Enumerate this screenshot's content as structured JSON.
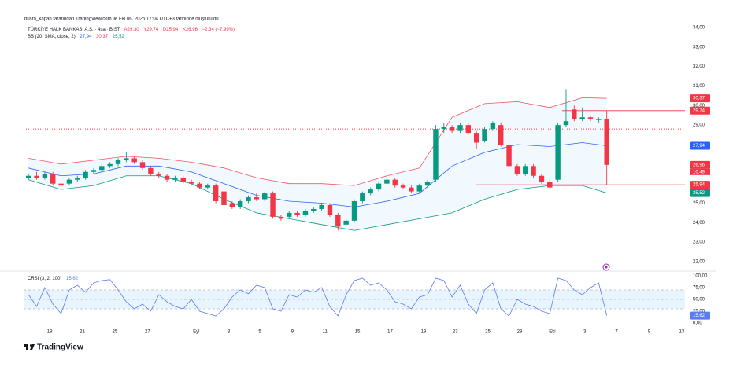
{
  "header": {
    "credit": "busra_kapan tarafından TradingView.com ile Eki 06, 2025 17:04 UTC+3 tarihinde oluşturuldu"
  },
  "brand": "TradingView",
  "chart_data": [
    {
      "type": "candlestick",
      "symbol": "TÜRKİYE HALK BANKASI A.Ş. · 4sa · BIST",
      "ohlc_labels": [
        "A29,30",
        "Y29,74",
        "D25,94",
        "K26,96",
        "−2,34 (−7,99%)"
      ],
      "bb_name": "BB (20, SMA, close, 2)",
      "bb_labels": [
        "27,94",
        "30,37",
        "25,52"
      ],
      "up_color": "#089981",
      "down_color": "#f23645",
      "grid": false,
      "x": [
        0,
        1,
        2,
        3,
        4,
        5,
        6,
        7,
        8,
        9,
        10,
        11,
        12,
        13,
        14,
        15,
        16,
        17,
        18,
        19,
        20,
        21,
        22,
        23,
        24,
        25,
        26,
        27,
        28,
        29,
        30,
        31,
        32,
        33,
        34,
        35,
        36,
        37,
        38,
        39,
        40,
        41,
        42,
        43,
        44,
        45,
        46,
        47,
        48,
        49,
        50,
        51,
        52,
        53,
        54,
        55,
        56,
        57,
        58,
        59,
        60,
        61,
        62,
        63,
        64,
        65,
        66,
        67,
        68,
        69,
        70,
        71
      ],
      "open": [
        26.3,
        26.4,
        26.3,
        26.5,
        26.0,
        26.0,
        26.2,
        26.3,
        26.6,
        26.7,
        26.9,
        27.0,
        27.2,
        27.3,
        27.1,
        26.8,
        26.5,
        26.4,
        26.2,
        26.3,
        26.1,
        26.0,
        25.8,
        25.9,
        25.6,
        25.0,
        24.8,
        25.1,
        25.3,
        25.2,
        25.5,
        24.3,
        24.3,
        24.5,
        24.4,
        24.6,
        24.7,
        24.9,
        24.4,
        23.9,
        24.1,
        25.1,
        25.5,
        25.7,
        26.0,
        26.2,
        25.9,
        25.8,
        25.6,
        25.9,
        26.2,
        28.8,
        28.9,
        28.7,
        29.0,
        28.6,
        28.2,
        28.8,
        29.0,
        28.0,
        26.9,
        26.5,
        26.9,
        26.4,
        26.1,
        26.2,
        29.0,
        29.8,
        29.3,
        29.4,
        29.3,
        29.3
      ],
      "high": [
        26.5,
        26.6,
        26.6,
        26.6,
        26.1,
        26.3,
        26.4,
        26.7,
        26.8,
        27.0,
        27.1,
        27.3,
        27.6,
        27.4,
        27.2,
        26.9,
        26.6,
        26.5,
        26.4,
        26.4,
        26.2,
        26.1,
        26.0,
        26.0,
        25.7,
        25.1,
        25.2,
        25.4,
        25.5,
        25.6,
        25.6,
        24.4,
        24.6,
        24.6,
        24.7,
        24.8,
        25.0,
        25.0,
        24.5,
        24.2,
        25.2,
        25.6,
        25.8,
        26.1,
        26.4,
        26.3,
        26.0,
        25.9,
        26.0,
        26.2,
        29.0,
        29.1,
        29.0,
        29.1,
        29.1,
        28.7,
        28.9,
        29.2,
        29.1,
        28.1,
        27.0,
        27.0,
        27.0,
        26.5,
        26.2,
        29.1,
        30.85,
        30.0,
        29.9,
        29.5,
        29.4,
        29.74
      ],
      "low": [
        26.2,
        26.2,
        26.2,
        25.9,
        25.8,
        25.9,
        26.1,
        26.2,
        26.5,
        26.6,
        26.8,
        26.9,
        27.1,
        27.0,
        26.7,
        26.4,
        26.3,
        26.1,
        26.1,
        26.0,
        25.9,
        25.7,
        25.7,
        25.0,
        24.8,
        24.7,
        24.7,
        25.0,
        25.1,
        25.1,
        24.2,
        24.1,
        24.2,
        24.3,
        24.3,
        24.5,
        24.6,
        24.3,
        23.6,
        23.8,
        24.0,
        25.0,
        25.4,
        25.6,
        25.9,
        25.8,
        25.7,
        25.5,
        25.5,
        25.8,
        26.1,
        28.6,
        28.6,
        28.6,
        28.5,
        27.8,
        28.1,
        28.7,
        27.9,
        26.8,
        26.4,
        26.4,
        26.3,
        26.0,
        25.7,
        26.1,
        28.9,
        29.2,
        29.2,
        29.2,
        29.1,
        25.94
      ],
      "close": [
        26.4,
        26.3,
        26.5,
        26.0,
        25.9,
        26.2,
        26.3,
        26.6,
        26.7,
        26.9,
        27.0,
        27.2,
        27.3,
        27.1,
        26.8,
        26.5,
        26.4,
        26.2,
        26.3,
        26.1,
        26.0,
        25.8,
        25.9,
        25.1,
        24.9,
        24.8,
        25.1,
        25.3,
        25.2,
        25.5,
        24.3,
        24.2,
        24.5,
        24.4,
        24.6,
        24.7,
        24.9,
        24.4,
        23.8,
        24.1,
        25.1,
        25.5,
        25.7,
        26.0,
        26.2,
        25.9,
        25.8,
        25.6,
        25.9,
        26.1,
        28.8,
        28.9,
        28.7,
        29.0,
        28.6,
        28.1,
        28.8,
        29.1,
        28.0,
        26.9,
        26.5,
        26.9,
        26.4,
        26.1,
        25.8,
        29.0,
        29.2,
        29.3,
        29.4,
        29.3,
        29.3,
        26.96
      ],
      "bands": {
        "x": [
          0,
          4,
          8,
          12,
          16,
          20,
          24,
          28,
          32,
          36,
          40,
          44,
          48,
          52,
          56,
          60,
          64,
          68,
          71
        ],
        "upper": {
          "color": "#f7525f",
          "values": [
            27.3,
            27.0,
            27.2,
            27.4,
            27.3,
            27.1,
            26.8,
            26.3,
            26.0,
            26.0,
            25.9,
            26.4,
            26.8,
            29.4,
            30.1,
            30.2,
            29.9,
            30.4,
            30.37
          ]
        },
        "basis": {
          "color": "#2962ff",
          "values": [
            26.8,
            26.4,
            26.5,
            26.9,
            26.9,
            26.6,
            26.0,
            25.4,
            25.1,
            25.0,
            24.8,
            25.1,
            25.5,
            26.9,
            27.6,
            28.0,
            27.9,
            28.1,
            27.94
          ]
        },
        "lower": {
          "color": "#089981",
          "values": [
            26.2,
            25.7,
            25.9,
            26.4,
            26.4,
            26.0,
            25.2,
            24.5,
            24.2,
            23.9,
            23.6,
            23.9,
            24.2,
            24.5,
            25.2,
            25.7,
            25.9,
            25.9,
            25.52
          ]
        },
        "fill": "#2196f3"
      },
      "price_lines": [
        {
          "value": 28.8,
          "from": -0.6,
          "style": "dotted",
          "color": "#f23645"
        },
        {
          "value": 29.74,
          "from": 65.5,
          "style": "solid",
          "color": "#f23645"
        },
        {
          "value": 25.94,
          "from": 55,
          "style": "solid",
          "color": "#f23645"
        }
      ],
      "price_badges": [
        {
          "value": 30.37,
          "label": "30,37",
          "color": "#f23645"
        },
        {
          "value": 29.74,
          "label": "29,74",
          "color": "#f23645"
        },
        {
          "value": 27.94,
          "label": "27,94",
          "color": "#2962ff"
        },
        {
          "value": 26.96,
          "label": "26,96",
          "color": "#f23645"
        },
        {
          "value": 25.94,
          "label": "25,94",
          "color": "#f23645"
        },
        {
          "value": 25.52,
          "label": "25,52",
          "color": "#089981"
        }
      ],
      "countdown": "10:49",
      "xlim": [
        -0.6,
        80.6
      ],
      "ylim": [
        22,
        34
      ],
      "yticks": [
        {
          "value": 34,
          "label": "34,00"
        },
        {
          "value": 33,
          "label": "33,00"
        },
        {
          "value": 32,
          "label": "32,00"
        },
        {
          "value": 31,
          "label": "31,00"
        },
        {
          "value": 30,
          "label": "30,00"
        },
        {
          "value": 29,
          "label": "29,00"
        },
        {
          "value": 25,
          "label": "25,00"
        },
        {
          "value": 24,
          "label": "24,00"
        },
        {
          "value": 23,
          "label": "23,00"
        },
        {
          "value": 22,
          "label": "22,00"
        }
      ],
      "xticks": [
        {
          "value": 2.6,
          "label": "19"
        },
        {
          "value": 6.6,
          "label": "21"
        },
        {
          "value": 10.6,
          "label": "25"
        },
        {
          "value": 14.6,
          "label": "27"
        },
        {
          "value": 20.6,
          "label": "Eyl"
        },
        {
          "value": 24.6,
          "label": "3"
        },
        {
          "value": 28.4,
          "label": "5"
        },
        {
          "value": 32.4,
          "label": "9"
        },
        {
          "value": 36.4,
          "label": "11"
        },
        {
          "value": 40.4,
          "label": "15"
        },
        {
          "value": 44.4,
          "label": "17"
        },
        {
          "value": 48.5,
          "label": "19"
        },
        {
          "value": 52.4,
          "label": "23"
        },
        {
          "value": 56.4,
          "label": "25"
        },
        {
          "value": 60.3,
          "label": "29"
        },
        {
          "value": 64.3,
          "label": "Eki"
        },
        {
          "value": 68.3,
          "label": "3"
        },
        {
          "value": 72.2,
          "label": "7"
        },
        {
          "value": 76.2,
          "label": "9"
        },
        {
          "value": 80.2,
          "label": "13"
        }
      ]
    },
    {
      "type": "line",
      "name": "CRSI (3, 2, 100)",
      "value_label": "15,62",
      "color": "#5b7cf0",
      "x": [
        0,
        1,
        2,
        3,
        4,
        5,
        6,
        7,
        8,
        9,
        10,
        11,
        12,
        13,
        14,
        15,
        16,
        17,
        18,
        19,
        20,
        21,
        22,
        23,
        24,
        25,
        26,
        27,
        28,
        29,
        30,
        31,
        32,
        33,
        34,
        35,
        36,
        37,
        38,
        39,
        40,
        41,
        42,
        43,
        44,
        45,
        46,
        47,
        48,
        49,
        50,
        51,
        52,
        53,
        54,
        55,
        56,
        57,
        58,
        59,
        60,
        61,
        62,
        63,
        64,
        65,
        66,
        67,
        68,
        69,
        70,
        71
      ],
      "values": [
        60,
        35,
        75,
        40,
        20,
        70,
        80,
        65,
        85,
        90,
        92,
        70,
        45,
        30,
        40,
        25,
        60,
        45,
        35,
        30,
        50,
        25,
        20,
        15,
        30,
        55,
        70,
        62,
        80,
        75,
        30,
        25,
        60,
        55,
        70,
        65,
        75,
        35,
        15,
        60,
        90,
        95,
        80,
        85,
        70,
        45,
        40,
        30,
        55,
        60,
        95,
        90,
        55,
        80,
        40,
        20,
        70,
        85,
        30,
        15,
        50,
        40,
        35,
        25,
        20,
        95,
        90,
        70,
        60,
        75,
        85,
        15.62
      ],
      "levels": [
        70,
        50,
        30
      ],
      "band_color": "#2196f3",
      "xlim": [
        -0.6,
        80.6
      ],
      "ylim": [
        0,
        100
      ],
      "yticks": [
        {
          "value": 100,
          "label": "100,00"
        },
        {
          "value": 75,
          "label": "75,00"
        },
        {
          "value": 50,
          "label": "50,00"
        },
        {
          "value": 25,
          "label": "25,00"
        },
        {
          "value": 0,
          "label": "0,00"
        }
      ]
    }
  ]
}
